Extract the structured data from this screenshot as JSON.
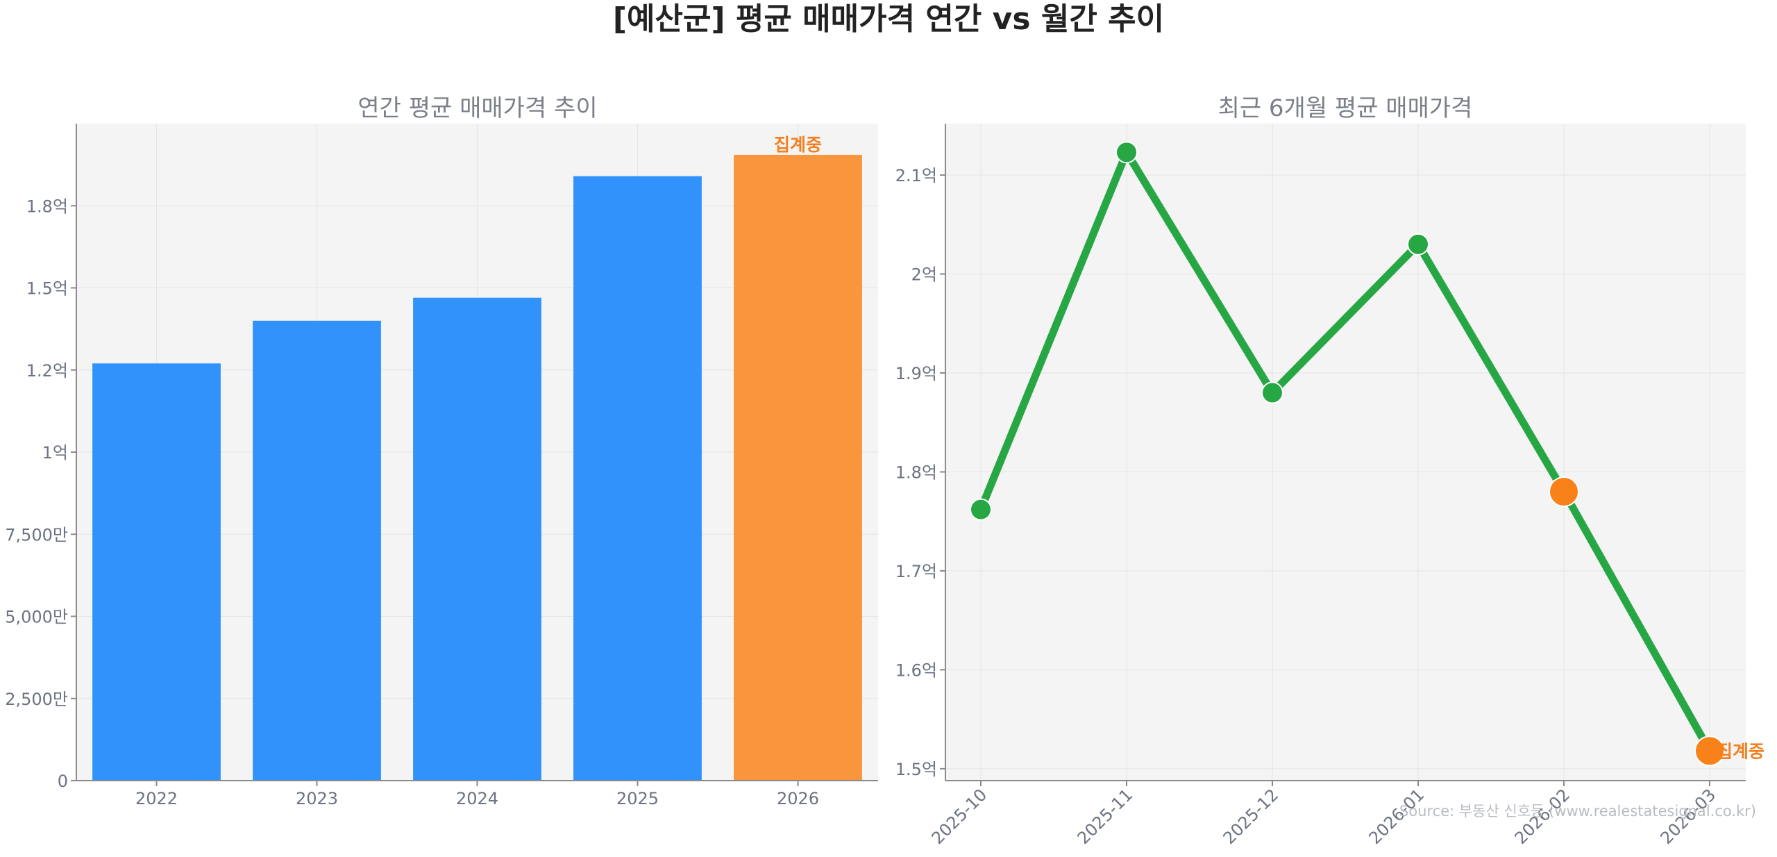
{
  "page": {
    "title": "[예산군] 평균 매매가격 연간 vs 월간 추이",
    "source": "Source: 부동산 신호등 (www.realestatesignal.co.kr)"
  },
  "colors": {
    "bar": "#3192fc",
    "bar_highlight": "#f8953d",
    "line": "#27a644",
    "marker_highlight": "#f98119",
    "note": "#f47f1f",
    "plot_bg": "#f4f4f4",
    "grid": "#e4e4e4",
    "axis": "#8a8a8a"
  },
  "chart_data": [
    {
      "type": "bar",
      "title": "연간 평균 매매가격 추이",
      "xlabel": "",
      "ylabel": "",
      "categories": [
        "2022",
        "2023",
        "2024",
        "2025",
        "2026"
      ],
      "values": [
        127000000,
        140000000,
        147000000,
        184000000,
        190500000
      ],
      "ylim": [
        0,
        200000000
      ],
      "yticks": [
        0,
        25000000,
        50000000,
        75000000,
        100000000,
        125000000,
        150000000,
        175000000
      ],
      "ytick_labels": [
        "0",
        "2,500만",
        "5,000만",
        "7,500만",
        "1억",
        "1.2억",
        "1.5억",
        "1.8억"
      ],
      "highlight_index": 4,
      "highlight_note": "집계중",
      "grid": true
    },
    {
      "type": "line",
      "title": "최근 6개월 평균 매매가격",
      "xlabel": "",
      "ylabel": "",
      "x": [
        "2025-10",
        "2025-11",
        "2025-12",
        "2026-01",
        "2026-02",
        "2026-03"
      ],
      "values": [
        176200000,
        212300000,
        188000000,
        203000000,
        178000000,
        151800000
      ],
      "ylim": [
        148800000,
        215200000
      ],
      "yticks": [
        150000000,
        160000000,
        170000000,
        180000000,
        190000000,
        200000000,
        210000000
      ],
      "ytick_labels": [
        "1.5억",
        "1.6억",
        "1.7억",
        "1.8억",
        "1.9억",
        "2억",
        "2.1억"
      ],
      "highlight_indices": [
        4,
        5
      ],
      "highlight_note": "집계중",
      "grid": true
    }
  ]
}
